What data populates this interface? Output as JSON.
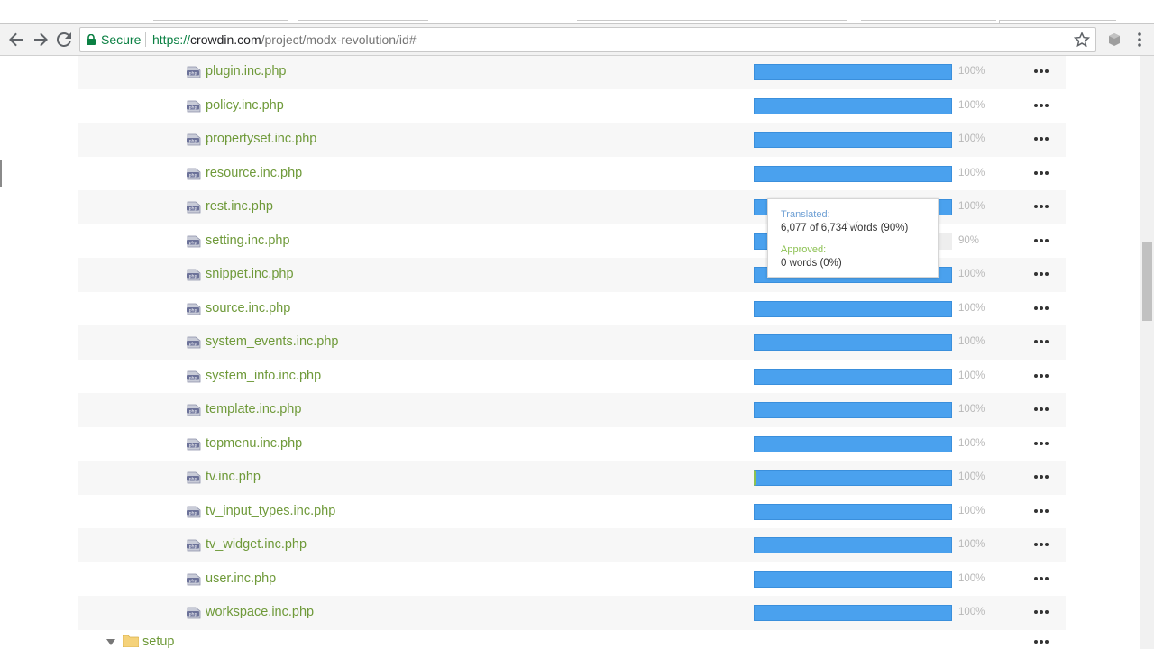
{
  "browser": {
    "secure_label": "Secure",
    "url_protocol": "https://",
    "url_host": "crowdin.com",
    "url_path": "/project/modx-revolution/id#"
  },
  "colors": {
    "file_link": "#6f9a3a",
    "progress_bar": "#4aa1ee",
    "approved": "#8cc152",
    "translated_label": "#6d9fd4",
    "percent_text": "#b8b8b8"
  },
  "files": [
    {
      "name": "plugin.inc.php",
      "progress": 100,
      "percent_label": "100%"
    },
    {
      "name": "policy.inc.php",
      "progress": 100,
      "percent_label": "100%"
    },
    {
      "name": "propertyset.inc.php",
      "progress": 100,
      "percent_label": "100%"
    },
    {
      "name": "resource.inc.php",
      "progress": 100,
      "percent_label": "100%"
    },
    {
      "name": "rest.inc.php",
      "progress": 100,
      "percent_label": "100%"
    },
    {
      "name": "setting.inc.php",
      "progress": 90,
      "percent_label": "90%"
    },
    {
      "name": "snippet.inc.php",
      "progress": 100,
      "percent_label": "100%"
    },
    {
      "name": "source.inc.php",
      "progress": 100,
      "percent_label": "100%"
    },
    {
      "name": "system_events.inc.php",
      "progress": 100,
      "percent_label": "100%"
    },
    {
      "name": "system_info.inc.php",
      "progress": 100,
      "percent_label": "100%"
    },
    {
      "name": "template.inc.php",
      "progress": 100,
      "percent_label": "100%"
    },
    {
      "name": "topmenu.inc.php",
      "progress": 100,
      "percent_label": "100%"
    },
    {
      "name": "tv.inc.php",
      "progress": 100,
      "percent_label": "100%",
      "approved_sliver": true
    },
    {
      "name": "tv_input_types.inc.php",
      "progress": 100,
      "percent_label": "100%"
    },
    {
      "name": "tv_widget.inc.php",
      "progress": 100,
      "percent_label": "100%"
    },
    {
      "name": "user.inc.php",
      "progress": 100,
      "percent_label": "100%"
    },
    {
      "name": "workspace.inc.php",
      "progress": 100,
      "percent_label": "100%"
    }
  ],
  "folder": {
    "name": "setup"
  },
  "tooltip": {
    "translated_label": "Translated:",
    "translated_value": "6,077 of 6,734 words (90%)",
    "approved_label": "Approved:",
    "approved_value": "0 words (0%)"
  },
  "icons": {
    "back": "arrow-left-icon",
    "forward": "arrow-right-icon",
    "reload": "reload-icon",
    "lock": "lock-icon",
    "star": "star-icon",
    "file": "php-file-icon",
    "folder": "folder-icon",
    "more": "more-dots-icon"
  }
}
